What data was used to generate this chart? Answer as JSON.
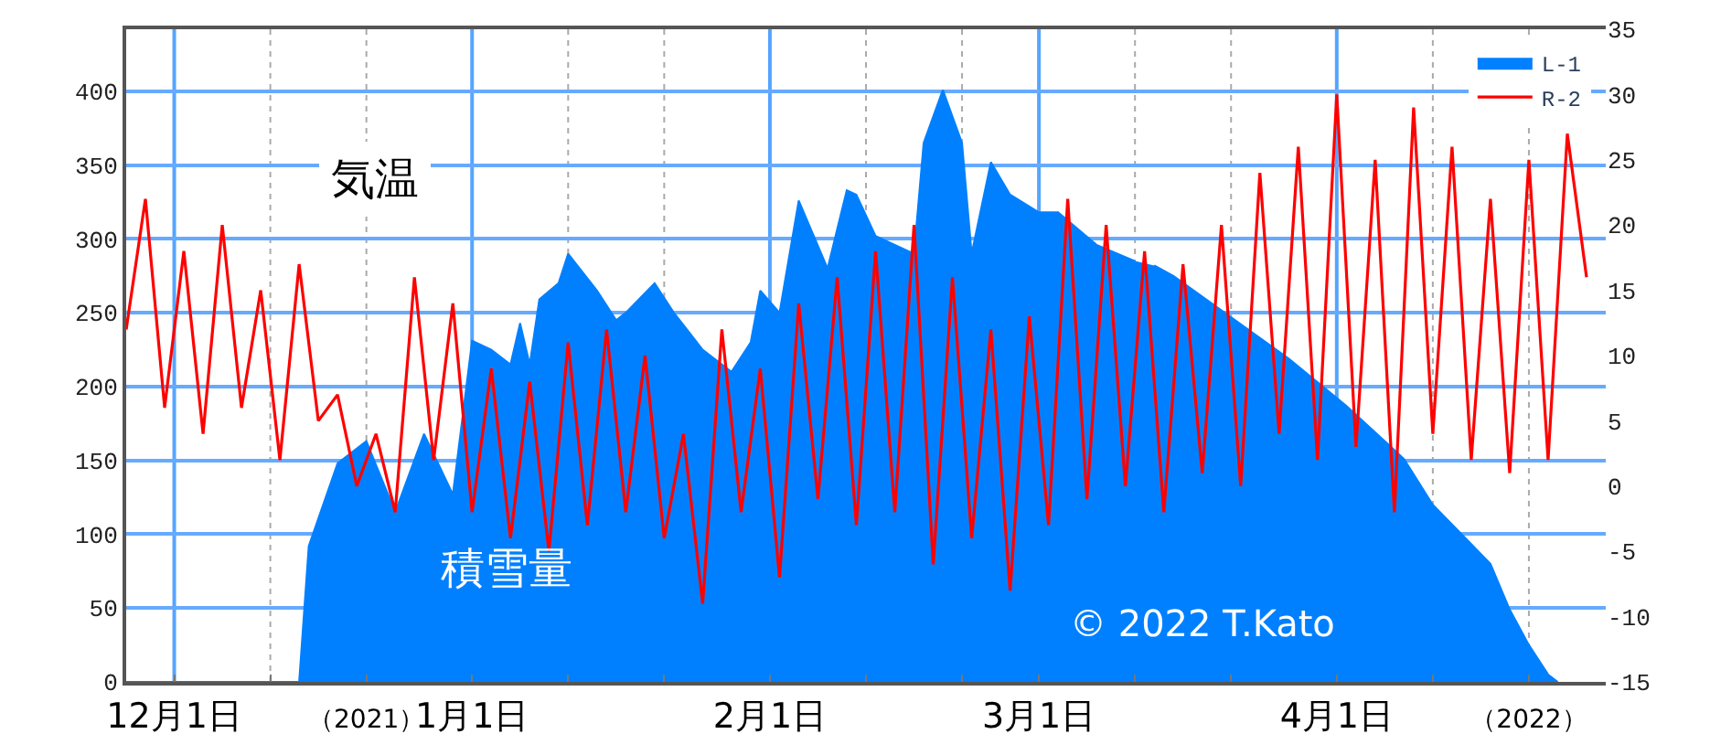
{
  "chart_data": {
    "type": "area",
    "series": [
      {
        "name": "L-1",
        "color": "#0080ff",
        "axis": "y",
        "x": [
          "2021-11-26",
          "2021-12-14",
          "2021-12-15",
          "2021-12-18",
          "2021-12-21",
          "2021-12-24",
          "2021-12-27",
          "2021-12-30",
          "2022-01-01",
          "2022-01-03",
          "2022-01-05",
          "2022-01-06",
          "2022-01-07",
          "2022-01-08",
          "2022-01-10",
          "2022-01-11",
          "2022-01-14",
          "2022-01-16",
          "2022-01-17",
          "2022-01-20",
          "2022-01-22",
          "2022-01-25",
          "2022-01-28",
          "2022-01-30",
          "2022-01-31",
          "2022-02-02",
          "2022-02-04",
          "2022-02-07",
          "2022-02-09",
          "2022-02-10",
          "2022-02-12",
          "2022-02-16",
          "2022-02-17",
          "2022-02-19",
          "2022-02-21",
          "2022-02-22",
          "2022-02-24",
          "2022-02-26",
          "2022-03-01",
          "2022-03-03",
          "2022-03-07",
          "2022-03-11",
          "2022-03-12",
          "2022-03-13",
          "2022-03-15",
          "2022-03-21",
          "2022-03-27",
          "2022-04-02",
          "2022-04-08",
          "2022-04-11",
          "2022-04-14",
          "2022-04-17",
          "2022-04-19",
          "2022-04-21",
          "2022-04-23",
          "2022-04-24"
        ],
        "values": [
          0,
          0,
          92,
          148,
          163,
          115,
          168,
          127,
          231,
          225,
          215,
          243,
          215,
          259,
          270,
          290,
          265,
          245,
          250,
          270,
          250,
          225,
          210,
          230,
          265,
          250,
          326,
          280,
          333,
          330,
          302,
          290,
          365,
          401,
          365,
          290,
          352,
          330,
          318,
          318,
          296,
          285,
          null,
          282,
          275,
          247,
          219,
          187,
          151,
          120,
          100,
          80,
          49,
          25,
          5,
          0
        ]
      },
      {
        "name": "R-2",
        "color": "#ff0000",
        "type": "line",
        "axis": "y2",
        "x": [
          "2021-11-26",
          "2021-11-28",
          "2021-11-30",
          "2021-12-02",
          "2021-12-04",
          "2021-12-06",
          "2021-12-08",
          "2021-12-10",
          "2021-12-12",
          "2021-12-14",
          "2021-12-16",
          "2021-12-18",
          "2021-12-20",
          "2021-12-22",
          "2021-12-24",
          "2021-12-26",
          "2021-12-28",
          "2021-12-30",
          "2022-01-01",
          "2022-01-03",
          "2022-01-05",
          "2022-01-07",
          "2022-01-09",
          "2022-01-11",
          "2022-01-13",
          "2022-01-15",
          "2022-01-17",
          "2022-01-19",
          "2022-01-21",
          "2022-01-23",
          "2022-01-25",
          "2022-01-27",
          "2022-01-29",
          "2022-01-31",
          "2022-02-02",
          "2022-02-04",
          "2022-02-06",
          "2022-02-08",
          "2022-02-10",
          "2022-02-12",
          "2022-02-14",
          "2022-02-16",
          "2022-02-18",
          "2022-02-20",
          "2022-02-22",
          "2022-02-24",
          "2022-02-26",
          "2022-02-28",
          "2022-03-02",
          "2022-03-04",
          "2022-03-06",
          "2022-03-08",
          "2022-03-10",
          "2022-03-12",
          "2022-03-14",
          "2022-03-16",
          "2022-03-18",
          "2022-03-20",
          "2022-03-22",
          "2022-03-24",
          "2022-03-26",
          "2022-03-28",
          "2022-03-30",
          "2022-04-01",
          "2022-04-03",
          "2022-04-05",
          "2022-04-07",
          "2022-04-09",
          "2022-04-11",
          "2022-04-13",
          "2022-04-15",
          "2022-04-17",
          "2022-04-19",
          "2022-04-21",
          "2022-04-23",
          "2022-04-25",
          "2022-04-27"
        ],
        "values": [
          12,
          22,
          6,
          18,
          4,
          20,
          6,
          15,
          2,
          17,
          5,
          7,
          0,
          4,
          -2,
          16,
          2,
          14,
          -2,
          9,
          -4,
          8,
          -5,
          11,
          -3,
          12,
          -2,
          10,
          -4,
          4,
          -9,
          12,
          -2,
          9,
          -7,
          14,
          -1,
          16,
          -3,
          18,
          -2,
          20,
          -6,
          16,
          -4,
          12,
          -8,
          13,
          -3,
          22,
          -1,
          20,
          0,
          18,
          -2,
          17,
          1,
          20,
          0,
          24,
          4,
          26,
          2,
          30,
          3,
          25,
          -2,
          29,
          4,
          26,
          2,
          22,
          1,
          25,
          2,
          27,
          16
        ]
      }
    ],
    "xlim": [
      "2021-11-26",
      "2022-04-29"
    ],
    "xticks": [
      {
        "value": "2021-12-01",
        "label": "12月1日"
      },
      {
        "value": "2021-12-11",
        "label": null
      },
      {
        "value": "2021-12-21",
        "label": "（2021）"
      },
      {
        "value": "2022-01-01",
        "label": "1月1日"
      },
      {
        "value": "2022-01-11",
        "label": null
      },
      {
        "value": "2022-01-21",
        "label": null
      },
      {
        "value": "2022-02-01",
        "label": "2月1日"
      },
      {
        "value": "2022-02-11",
        "label": null
      },
      {
        "value": "2022-02-21",
        "label": null
      },
      {
        "value": "2022-03-01",
        "label": "3月1日"
      },
      {
        "value": "2022-03-11",
        "label": null
      },
      {
        "value": "2022-03-21",
        "label": null
      },
      {
        "value": "2022-04-01",
        "label": "4月1日"
      },
      {
        "value": "2022-04-11",
        "label": null
      },
      {
        "value": "2022-04-21",
        "label": "（2022）"
      }
    ],
    "ylim": [
      0,
      442
    ],
    "yticks": [
      0,
      50,
      100,
      150,
      200,
      250,
      300,
      350,
      400
    ],
    "y2lim": [
      -15,
      35
    ],
    "y2ticks": [
      -15,
      -10,
      -5,
      0,
      5,
      10,
      15,
      20,
      25,
      30,
      35
    ],
    "grid": true,
    "legend": "top right",
    "annotations": [
      "気温",
      "積雪量",
      "© 2022 T.Kato"
    ]
  }
}
